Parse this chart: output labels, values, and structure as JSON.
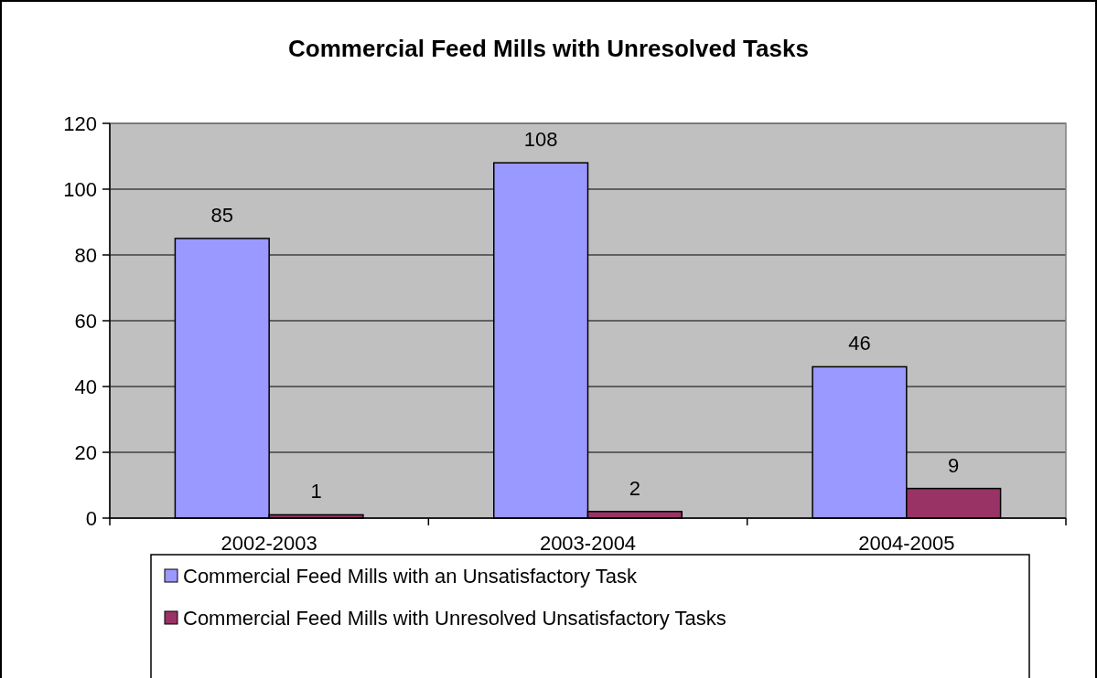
{
  "chart_data": {
    "type": "bar",
    "title": "Commercial Feed Mills with Unresolved Tasks",
    "categories": [
      "2002-2003",
      "2003-2004",
      "2004-2005"
    ],
    "series": [
      {
        "name": "Commercial Feed Mills with an Unsatisfactory Task",
        "color": "#9999ff",
        "values": [
          85,
          108,
          46
        ]
      },
      {
        "name": "Commercial Feed Mills with Unresolved Unsatisfactory Tasks",
        "color": "#993366",
        "values": [
          1,
          2,
          9
        ]
      }
    ],
    "ylim": [
      0,
      120
    ],
    "yticks": [
      0,
      20,
      40,
      60,
      80,
      100,
      120
    ],
    "grid": "y",
    "legend": "bottom",
    "data_labels": true
  }
}
